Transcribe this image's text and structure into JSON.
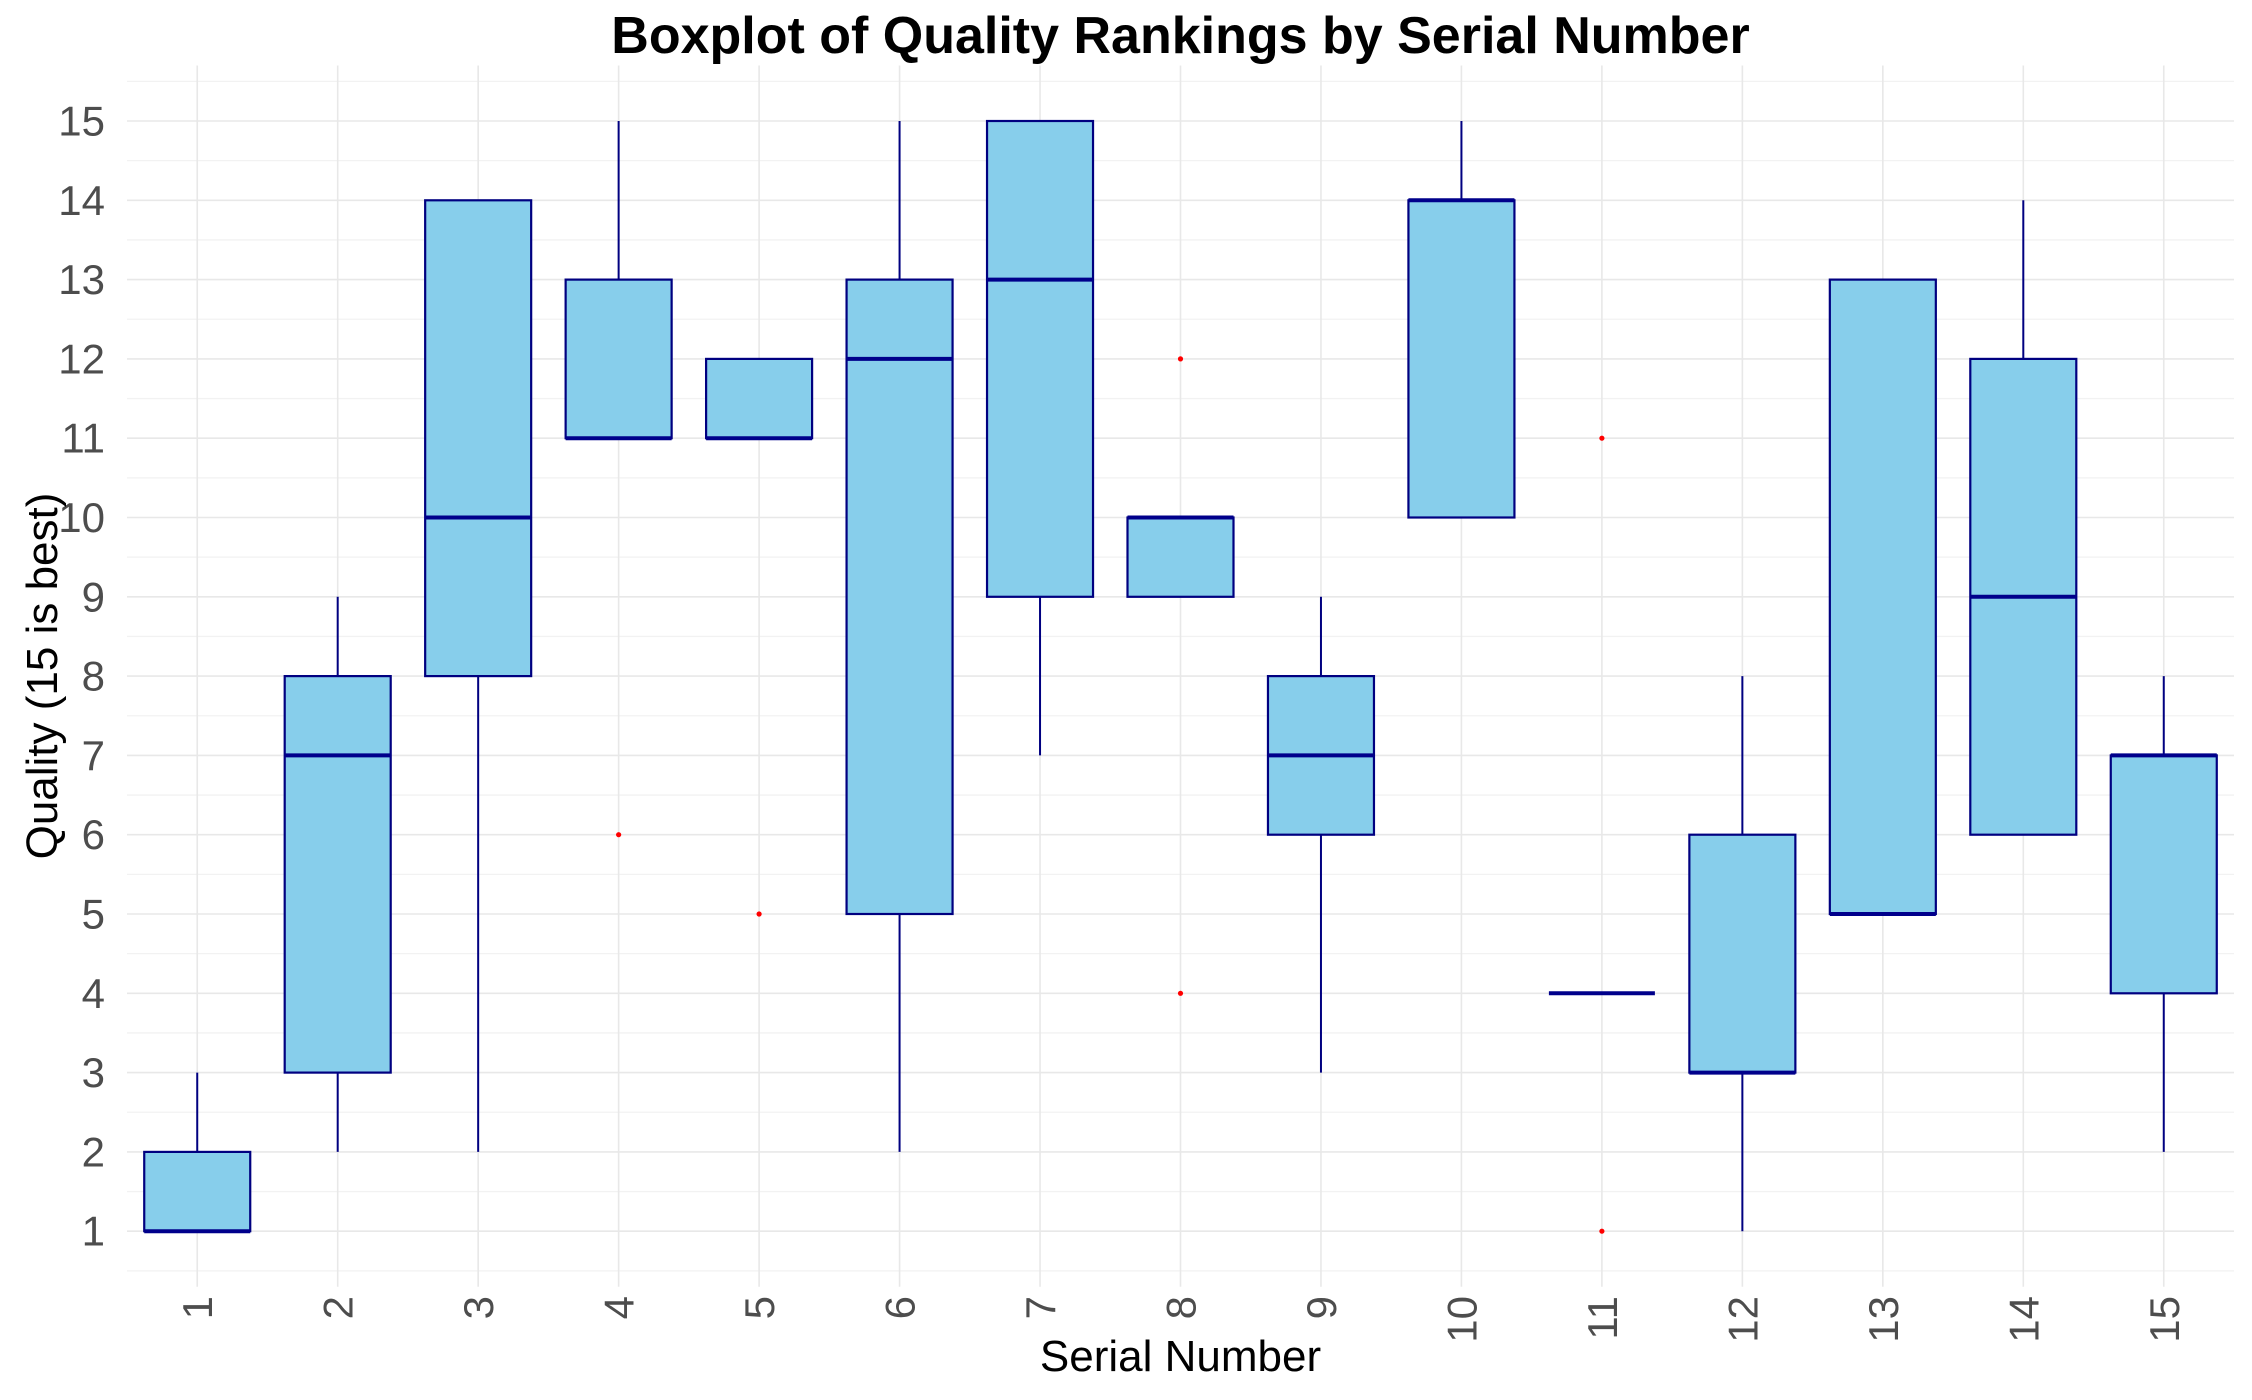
{
  "title": "Boxplot of Quality Rankings by Serial Number",
  "axes": {
    "x_title": "Serial Number",
    "y_title": "Quality (15 is best)",
    "x_ticks": [
      "1",
      "2",
      "3",
      "4",
      "5",
      "6",
      "7",
      "8",
      "9",
      "10",
      "11",
      "12",
      "13",
      "14",
      "15"
    ],
    "y_ticks": [
      "1",
      "2",
      "3",
      "4",
      "5",
      "6",
      "7",
      "8",
      "9",
      "10",
      "11",
      "12",
      "13",
      "14",
      "15"
    ]
  },
  "colors": {
    "box_fill": "#87CEEB",
    "box_border": "#000080",
    "median": "#00008B",
    "whisker": "#000080",
    "outlier": "#FF0000",
    "grid_major": "#E8E8E8",
    "grid_minor": "#F2F2F2",
    "tick_text": "#4D4D4D",
    "title_text": "#000000",
    "background": "#FFFFFF"
  },
  "chart_data": {
    "type": "boxplot",
    "title": "Boxplot of Quality Rankings by Serial Number",
    "xlabel": "Serial Number",
    "ylabel": "Quality (15 is best)",
    "x_categories": [
      1,
      2,
      3,
      4,
      5,
      6,
      7,
      8,
      9,
      10,
      11,
      12,
      13,
      14,
      15
    ],
    "ylim": [
      0.3,
      15.7
    ],
    "y_tick_values": [
      1,
      2,
      3,
      4,
      5,
      6,
      7,
      8,
      9,
      10,
      11,
      12,
      13,
      14,
      15
    ],
    "grid": "major gridlines at integers (x and y), minor horizontal gridlines at 0.5 steps",
    "legend_position": "none",
    "series": [
      {
        "serial": 1,
        "lower_whisker": 1,
        "q1": 1,
        "median": 1,
        "q3": 2,
        "upper_whisker": 3,
        "outliers": []
      },
      {
        "serial": 2,
        "lower_whisker": 2,
        "q1": 3,
        "median": 7,
        "q3": 8,
        "upper_whisker": 9,
        "outliers": []
      },
      {
        "serial": 3,
        "lower_whisker": 2,
        "q1": 8,
        "median": 10,
        "q3": 14,
        "upper_whisker": 14,
        "outliers": []
      },
      {
        "serial": 4,
        "lower_whisker": 11,
        "q1": 11,
        "median": 11,
        "q3": 13,
        "upper_whisker": 15,
        "outliers": [
          6
        ]
      },
      {
        "serial": 5,
        "lower_whisker": 11,
        "q1": 11,
        "median": 11,
        "q3": 12,
        "upper_whisker": 12,
        "outliers": [
          5
        ]
      },
      {
        "serial": 6,
        "lower_whisker": 2,
        "q1": 5,
        "median": 12,
        "q3": 13,
        "upper_whisker": 15,
        "outliers": []
      },
      {
        "serial": 7,
        "lower_whisker": 7,
        "q1": 9,
        "median": 13,
        "q3": 15,
        "upper_whisker": 15,
        "outliers": []
      },
      {
        "serial": 8,
        "lower_whisker": 9,
        "q1": 9,
        "median": 10,
        "q3": 10,
        "upper_whisker": 10,
        "outliers": [
          12,
          4
        ]
      },
      {
        "serial": 9,
        "lower_whisker": 3,
        "q1": 6,
        "median": 7,
        "q3": 8,
        "upper_whisker": 9,
        "outliers": []
      },
      {
        "serial": 10,
        "lower_whisker": 10,
        "q1": 10,
        "median": 14,
        "q3": 14,
        "upper_whisker": 15,
        "outliers": []
      },
      {
        "serial": 11,
        "lower_whisker": 4,
        "q1": 4,
        "median": 4,
        "q3": 4,
        "upper_whisker": 4,
        "outliers": [
          11,
          1
        ]
      },
      {
        "serial": 12,
        "lower_whisker": 1,
        "q1": 3,
        "median": 3,
        "q3": 6,
        "upper_whisker": 8,
        "outliers": []
      },
      {
        "serial": 13,
        "lower_whisker": 5,
        "q1": 5,
        "median": 5,
        "q3": 13,
        "upper_whisker": 13,
        "outliers": []
      },
      {
        "serial": 14,
        "lower_whisker": 6,
        "q1": 6,
        "median": 9,
        "q3": 12,
        "upper_whisker": 14,
        "outliers": []
      },
      {
        "serial": 15,
        "lower_whisker": 2,
        "q1": 4,
        "median": 7,
        "q3": 7,
        "upper_whisker": 8,
        "outliers": []
      }
    ]
  }
}
